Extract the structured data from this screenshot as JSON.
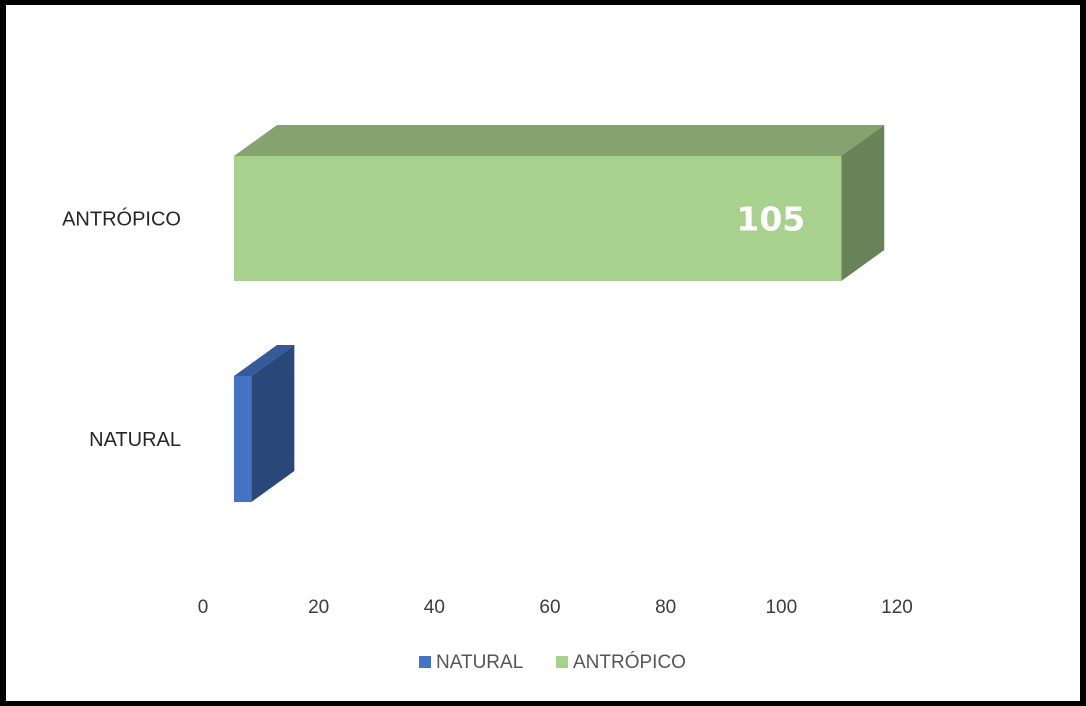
{
  "chart_data": {
    "type": "bar",
    "orientation": "horizontal",
    "three_d": true,
    "categories": [
      "ANTRÓPICO",
      "NATURAL"
    ],
    "series": [
      {
        "name": "NATURAL",
        "color": "#4472c4",
        "values": [
          0,
          3
        ]
      },
      {
        "name": "ANTRÓPICO",
        "color": "#a9d18e",
        "values": [
          105,
          0
        ]
      }
    ],
    "data_labels": [
      {
        "series": "ANTRÓPICO",
        "category": "ANTRÓPICO",
        "text": "105"
      }
    ],
    "x_ticks": [
      "0",
      "20",
      "40",
      "60",
      "80",
      "100",
      "120"
    ],
    "xlim": [
      0,
      120
    ],
    "grid": false,
    "legend": "bottom",
    "title": "",
    "xlabel": "",
    "ylabel": ""
  }
}
